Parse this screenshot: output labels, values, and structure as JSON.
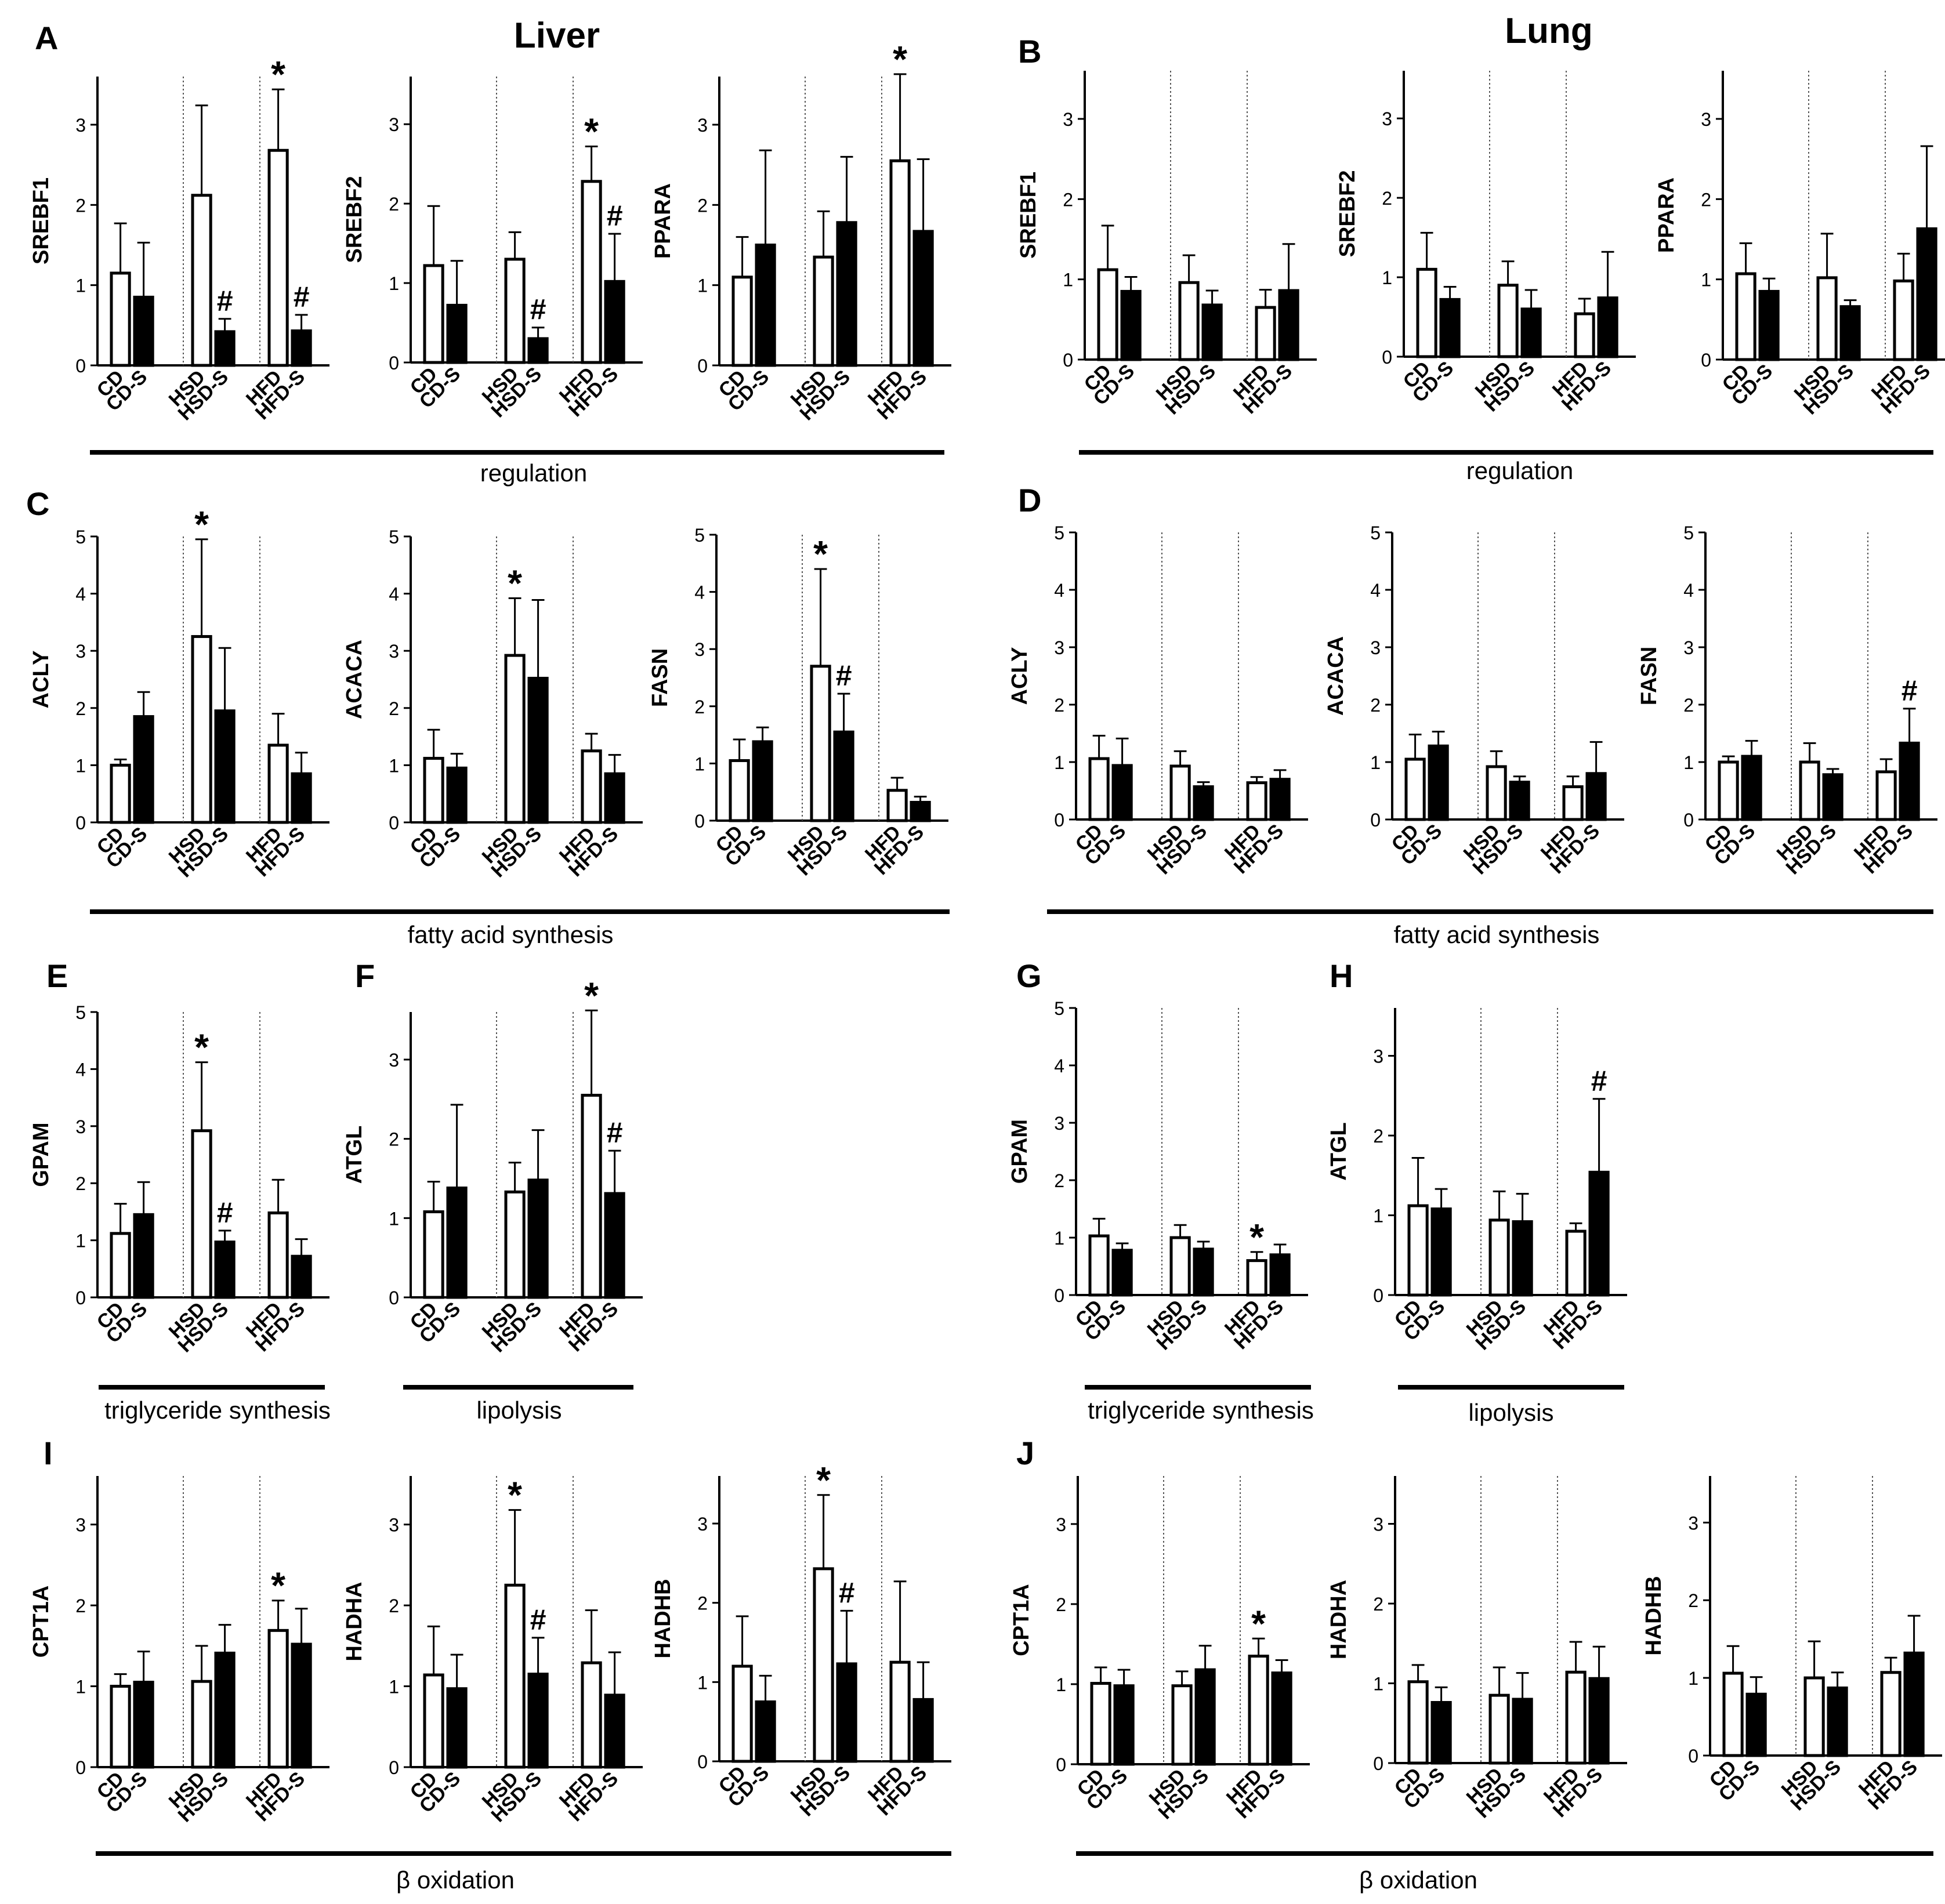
{
  "figure": {
    "liver_title": "Liver",
    "lung_title": "Lung",
    "group_labels": [
      "regulation",
      "fatty acid synthesis",
      "triglyceride synthesis",
      "lipolysis",
      "β oxidation"
    ]
  },
  "colors": {
    "control_bar": "#ffffff",
    "smoking_bar": "#000000",
    "axis": "#000000",
    "separator": "#555555"
  },
  "chart_data": [
    {
      "panel": "A",
      "organ": "Liver",
      "type": "bar",
      "ylabel": "SREBF1",
      "ylim": [
        0,
        3.6
      ],
      "yticks": [
        0,
        1,
        2,
        3
      ],
      "categories": [
        "CD",
        "CD-S",
        "HSD",
        "HSD-S",
        "HFD",
        "HFD-S"
      ],
      "values": [
        1.15,
        0.85,
        2.12,
        0.42,
        2.68,
        0.43
      ],
      "errors": [
        0.62,
        0.68,
        1.12,
        0.16,
        0.76,
        0.2
      ],
      "annotations": [
        "",
        "",
        "",
        "#",
        "*",
        "#"
      ]
    },
    {
      "panel": "A",
      "organ": "Liver",
      "type": "bar",
      "ylabel": "SREBF2",
      "ylim": [
        0,
        3.6
      ],
      "yticks": [
        0,
        1,
        2,
        3
      ],
      "categories": [
        "CD",
        "CD-S",
        "HSD",
        "HSD-S",
        "HFD",
        "HFD-S"
      ],
      "values": [
        1.22,
        0.72,
        1.3,
        0.3,
        2.28,
        1.02
      ],
      "errors": [
        0.75,
        0.56,
        0.34,
        0.14,
        0.44,
        0.6
      ],
      "annotations": [
        "",
        "",
        "",
        "#",
        "*",
        "#"
      ]
    },
    {
      "panel": "A",
      "organ": "Liver",
      "type": "bar",
      "ylabel": "PPARA",
      "ylim": [
        0,
        3.6
      ],
      "yticks": [
        0,
        1,
        2,
        3
      ],
      "categories": [
        "CD",
        "CD-S",
        "HSD",
        "HSD-S",
        "HFD",
        "HFD-S"
      ],
      "values": [
        1.1,
        1.5,
        1.35,
        1.78,
        2.55,
        1.67
      ],
      "errors": [
        0.5,
        1.18,
        0.57,
        0.82,
        1.08,
        0.9
      ],
      "annotations": [
        "",
        "",
        "",
        "",
        "*",
        ""
      ]
    },
    {
      "panel": "B",
      "organ": "Lung",
      "type": "bar",
      "ylabel": "SREBF1",
      "ylim": [
        0,
        3.6
      ],
      "yticks": [
        0,
        1,
        2,
        3
      ],
      "categories": [
        "CD",
        "CD-S",
        "HSD",
        "HSD-S",
        "HFD",
        "HFD-S"
      ],
      "values": [
        1.12,
        0.85,
        0.96,
        0.68,
        0.65,
        0.86
      ],
      "errors": [
        0.55,
        0.18,
        0.34,
        0.18,
        0.22,
        0.58
      ],
      "annotations": [
        "",
        "",
        "",
        "",
        "",
        ""
      ]
    },
    {
      "panel": "B",
      "organ": "Lung",
      "type": "bar",
      "ylabel": "SREBF2",
      "ylim": [
        0,
        3.6
      ],
      "yticks": [
        0,
        1,
        2,
        3
      ],
      "categories": [
        "CD",
        "CD-S",
        "HSD",
        "HSD-S",
        "HFD",
        "HFD-S"
      ],
      "values": [
        1.1,
        0.72,
        0.9,
        0.6,
        0.54,
        0.74
      ],
      "errors": [
        0.46,
        0.16,
        0.3,
        0.24,
        0.19,
        0.58
      ],
      "annotations": [
        "",
        "",
        "",
        "",
        "",
        ""
      ]
    },
    {
      "panel": "B",
      "organ": "Lung",
      "type": "bar",
      "ylabel": "PPARA",
      "ylim": [
        0,
        3.6
      ],
      "yticks": [
        0,
        1,
        2,
        3
      ],
      "categories": [
        "CD",
        "CD-S",
        "HSD",
        "HSD-S",
        "HFD",
        "HFD-S"
      ],
      "values": [
        1.07,
        0.85,
        1.02,
        0.66,
        0.98,
        1.63
      ],
      "errors": [
        0.38,
        0.16,
        0.55,
        0.08,
        0.34,
        1.03
      ],
      "annotations": [
        "",
        "",
        "",
        "",
        "",
        ""
      ]
    },
    {
      "panel": "C",
      "organ": "Liver",
      "type": "bar",
      "ylabel": "ACLY",
      "ylim": [
        0,
        5
      ],
      "yticks": [
        0,
        1,
        2,
        3,
        4,
        5
      ],
      "categories": [
        "CD",
        "CD-S",
        "HSD",
        "HSD-S",
        "HFD",
        "HFD-S"
      ],
      "values": [
        1.0,
        1.85,
        3.25,
        1.95,
        1.35,
        0.85
      ],
      "errors": [
        0.1,
        0.43,
        1.7,
        1.1,
        0.55,
        0.37
      ],
      "annotations": [
        "",
        "",
        "*",
        "",
        "",
        ""
      ]
    },
    {
      "panel": "C",
      "organ": "Liver",
      "type": "bar",
      "ylabel": "ACACA",
      "ylim": [
        0,
        5
      ],
      "yticks": [
        0,
        1,
        2,
        3,
        4,
        5
      ],
      "categories": [
        "CD",
        "CD-S",
        "HSD",
        "HSD-S",
        "HFD",
        "HFD-S"
      ],
      "values": [
        1.12,
        0.95,
        2.92,
        2.52,
        1.25,
        0.85
      ],
      "errors": [
        0.5,
        0.25,
        1.0,
        1.37,
        0.3,
        0.33
      ],
      "annotations": [
        "",
        "",
        "*",
        "",
        "",
        ""
      ]
    },
    {
      "panel": "C",
      "organ": "Liver",
      "type": "bar",
      "ylabel": "FASN",
      "ylim": [
        0,
        5
      ],
      "yticks": [
        0,
        1,
        2,
        3,
        4,
        5
      ],
      "categories": [
        "CD",
        "CD-S",
        "HSD",
        "HSD-S",
        "HFD",
        "HFD-S"
      ],
      "values": [
        1.05,
        1.38,
        2.7,
        1.55,
        0.53,
        0.32
      ],
      "errors": [
        0.37,
        0.25,
        1.7,
        0.67,
        0.22,
        0.1
      ],
      "annotations": [
        "",
        "",
        "*",
        "#",
        "",
        ""
      ]
    },
    {
      "panel": "D",
      "organ": "Lung",
      "type": "bar",
      "ylabel": "ACLY",
      "ylim": [
        0,
        5
      ],
      "yticks": [
        0,
        1,
        2,
        3,
        4,
        5
      ],
      "categories": [
        "CD",
        "CD-S",
        "HSD",
        "HSD-S",
        "HFD",
        "HFD-S"
      ],
      "values": [
        1.06,
        0.94,
        0.93,
        0.57,
        0.64,
        0.7
      ],
      "errors": [
        0.4,
        0.47,
        0.26,
        0.08,
        0.1,
        0.16
      ],
      "annotations": [
        "",
        "",
        "",
        "",
        "",
        ""
      ]
    },
    {
      "panel": "D",
      "organ": "Lung",
      "type": "bar",
      "ylabel": "ACACA",
      "ylim": [
        0,
        5
      ],
      "yticks": [
        0,
        1,
        2,
        3,
        4,
        5
      ],
      "categories": [
        "CD",
        "CD-S",
        "HSD",
        "HSD-S",
        "HFD",
        "HFD-S"
      ],
      "values": [
        1.05,
        1.28,
        0.92,
        0.65,
        0.57,
        0.8
      ],
      "errors": [
        0.43,
        0.25,
        0.27,
        0.1,
        0.18,
        0.55
      ],
      "annotations": [
        "",
        "",
        "",
        "",
        "",
        ""
      ]
    },
    {
      "panel": "D",
      "organ": "Lung",
      "type": "bar",
      "ylabel": "FASN",
      "ylim": [
        0,
        5
      ],
      "yticks": [
        0,
        1,
        2,
        3,
        4,
        5
      ],
      "categories": [
        "CD",
        "CD-S",
        "HSD",
        "HSD-S",
        "HFD",
        "HFD-S"
      ],
      "values": [
        1.0,
        1.1,
        1.0,
        0.78,
        0.83,
        1.33
      ],
      "errors": [
        0.1,
        0.27,
        0.33,
        0.1,
        0.22,
        0.6
      ],
      "annotations": [
        "",
        "",
        "",
        "",
        "",
        "#"
      ]
    },
    {
      "panel": "E",
      "organ": "Liver",
      "type": "bar",
      "ylabel": "GPAM",
      "ylim": [
        0,
        5
      ],
      "yticks": [
        0,
        1,
        2,
        3,
        4,
        5
      ],
      "categories": [
        "CD",
        "CD-S",
        "HSD",
        "HSD-S",
        "HFD",
        "HFD-S"
      ],
      "values": [
        1.12,
        1.45,
        2.92,
        0.97,
        1.48,
        0.72
      ],
      "errors": [
        0.52,
        0.57,
        1.2,
        0.2,
        0.58,
        0.3
      ],
      "annotations": [
        "",
        "",
        "*",
        "#",
        "",
        ""
      ]
    },
    {
      "panel": "F",
      "organ": "Liver",
      "type": "bar",
      "ylabel": "ATGL",
      "ylim": [
        0,
        3.6
      ],
      "yticks": [
        0,
        1,
        2,
        3
      ],
      "categories": [
        "CD",
        "CD-S",
        "HSD",
        "HSD-S",
        "HFD",
        "HFD-S"
      ],
      "values": [
        1.08,
        1.38,
        1.33,
        1.48,
        2.55,
        1.31
      ],
      "errors": [
        0.38,
        1.05,
        0.37,
        0.63,
        1.07,
        0.54
      ],
      "annotations": [
        "",
        "",
        "",
        "",
        "*",
        "#"
      ]
    },
    {
      "panel": "G",
      "organ": "Lung",
      "type": "bar",
      "ylabel": "GPAM",
      "ylim": [
        0,
        5
      ],
      "yticks": [
        0,
        1,
        2,
        3,
        4,
        5
      ],
      "categories": [
        "CD",
        "CD-S",
        "HSD",
        "HSD-S",
        "HFD",
        "HFD-S"
      ],
      "values": [
        1.03,
        0.78,
        1.0,
        0.8,
        0.6,
        0.7
      ],
      "errors": [
        0.3,
        0.12,
        0.22,
        0.13,
        0.15,
        0.18
      ],
      "annotations": [
        "",
        "",
        "",
        "",
        "*",
        ""
      ]
    },
    {
      "panel": "H",
      "organ": "Lung",
      "type": "bar",
      "ylabel": "ATGL",
      "ylim": [
        0,
        3.6
      ],
      "yticks": [
        0,
        1,
        2,
        3
      ],
      "categories": [
        "CD",
        "CD-S",
        "HSD",
        "HSD-S",
        "HFD",
        "HFD-S"
      ],
      "values": [
        1.12,
        1.08,
        0.94,
        0.92,
        0.8,
        1.54
      ],
      "errors": [
        0.6,
        0.25,
        0.36,
        0.35,
        0.1,
        0.92
      ],
      "annotations": [
        "",
        "",
        "",
        "",
        "",
        "#"
      ]
    },
    {
      "panel": "I",
      "organ": "Liver",
      "type": "bar",
      "ylabel": "CPT1A",
      "ylim": [
        0,
        3.6
      ],
      "yticks": [
        0,
        1,
        2,
        3
      ],
      "categories": [
        "CD",
        "CD-S",
        "HSD",
        "HSD-S",
        "HFD",
        "HFD-S"
      ],
      "values": [
        1.0,
        1.05,
        1.06,
        1.41,
        1.69,
        1.52
      ],
      "errors": [
        0.15,
        0.38,
        0.44,
        0.35,
        0.37,
        0.44
      ],
      "annotations": [
        "",
        "",
        "",
        "",
        "*",
        ""
      ]
    },
    {
      "panel": "I",
      "organ": "Liver",
      "type": "bar",
      "ylabel": "HADHA",
      "ylim": [
        0,
        3.6
      ],
      "yticks": [
        0,
        1,
        2,
        3
      ],
      "categories": [
        "CD",
        "CD-S",
        "HSD",
        "HSD-S",
        "HFD",
        "HFD-S"
      ],
      "values": [
        1.14,
        0.97,
        2.25,
        1.15,
        1.29,
        0.89
      ],
      "errors": [
        0.6,
        0.42,
        0.93,
        0.45,
        0.65,
        0.53
      ],
      "annotations": [
        "",
        "",
        "*",
        "#",
        "",
        ""
      ]
    },
    {
      "panel": "I",
      "organ": "Liver",
      "type": "bar",
      "ylabel": "HADHB",
      "ylim": [
        0,
        3.6
      ],
      "yticks": [
        0,
        1,
        2,
        3
      ],
      "categories": [
        "CD",
        "CD-S",
        "HSD",
        "HSD-S",
        "HFD",
        "HFD-S"
      ],
      "values": [
        1.2,
        0.75,
        2.43,
        1.23,
        1.25,
        0.78
      ],
      "errors": [
        0.63,
        0.33,
        0.93,
        0.67,
        1.02,
        0.47
      ],
      "annotations": [
        "",
        "",
        "*",
        "#",
        "",
        ""
      ]
    },
    {
      "panel": "J",
      "organ": "Lung",
      "type": "bar",
      "ylabel": "CPT1A",
      "ylim": [
        0,
        3.6
      ],
      "yticks": [
        0,
        1,
        2,
        3
      ],
      "categories": [
        "CD",
        "CD-S",
        "HSD",
        "HSD-S",
        "HFD",
        "HFD-S"
      ],
      "values": [
        1.01,
        0.98,
        0.98,
        1.18,
        1.35,
        1.14
      ],
      "errors": [
        0.2,
        0.2,
        0.18,
        0.3,
        0.22,
        0.16
      ],
      "annotations": [
        "",
        "",
        "",
        "",
        "*",
        ""
      ]
    },
    {
      "panel": "J",
      "organ": "Lung",
      "type": "bar",
      "ylabel": "HADHA",
      "ylim": [
        0,
        3.6
      ],
      "yticks": [
        0,
        1,
        2,
        3
      ],
      "categories": [
        "CD",
        "CD-S",
        "HSD",
        "HSD-S",
        "HFD",
        "HFD-S"
      ],
      "values": [
        1.02,
        0.76,
        0.85,
        0.8,
        1.14,
        1.06
      ],
      "errors": [
        0.21,
        0.19,
        0.35,
        0.33,
        0.38,
        0.4
      ],
      "annotations": [
        "",
        "",
        "",
        "",
        "",
        ""
      ]
    },
    {
      "panel": "J",
      "organ": "Lung",
      "type": "bar",
      "ylabel": "HADHB",
      "ylim": [
        0,
        3.6
      ],
      "yticks": [
        0,
        1,
        2,
        3
      ],
      "categories": [
        "CD",
        "CD-S",
        "HSD",
        "HSD-S",
        "HFD",
        "HFD-S"
      ],
      "values": [
        1.06,
        0.79,
        1.0,
        0.87,
        1.07,
        1.32
      ],
      "errors": [
        0.35,
        0.22,
        0.47,
        0.2,
        0.19,
        0.48
      ],
      "annotations": [
        "",
        "",
        "",
        "",
        "",
        ""
      ]
    }
  ]
}
